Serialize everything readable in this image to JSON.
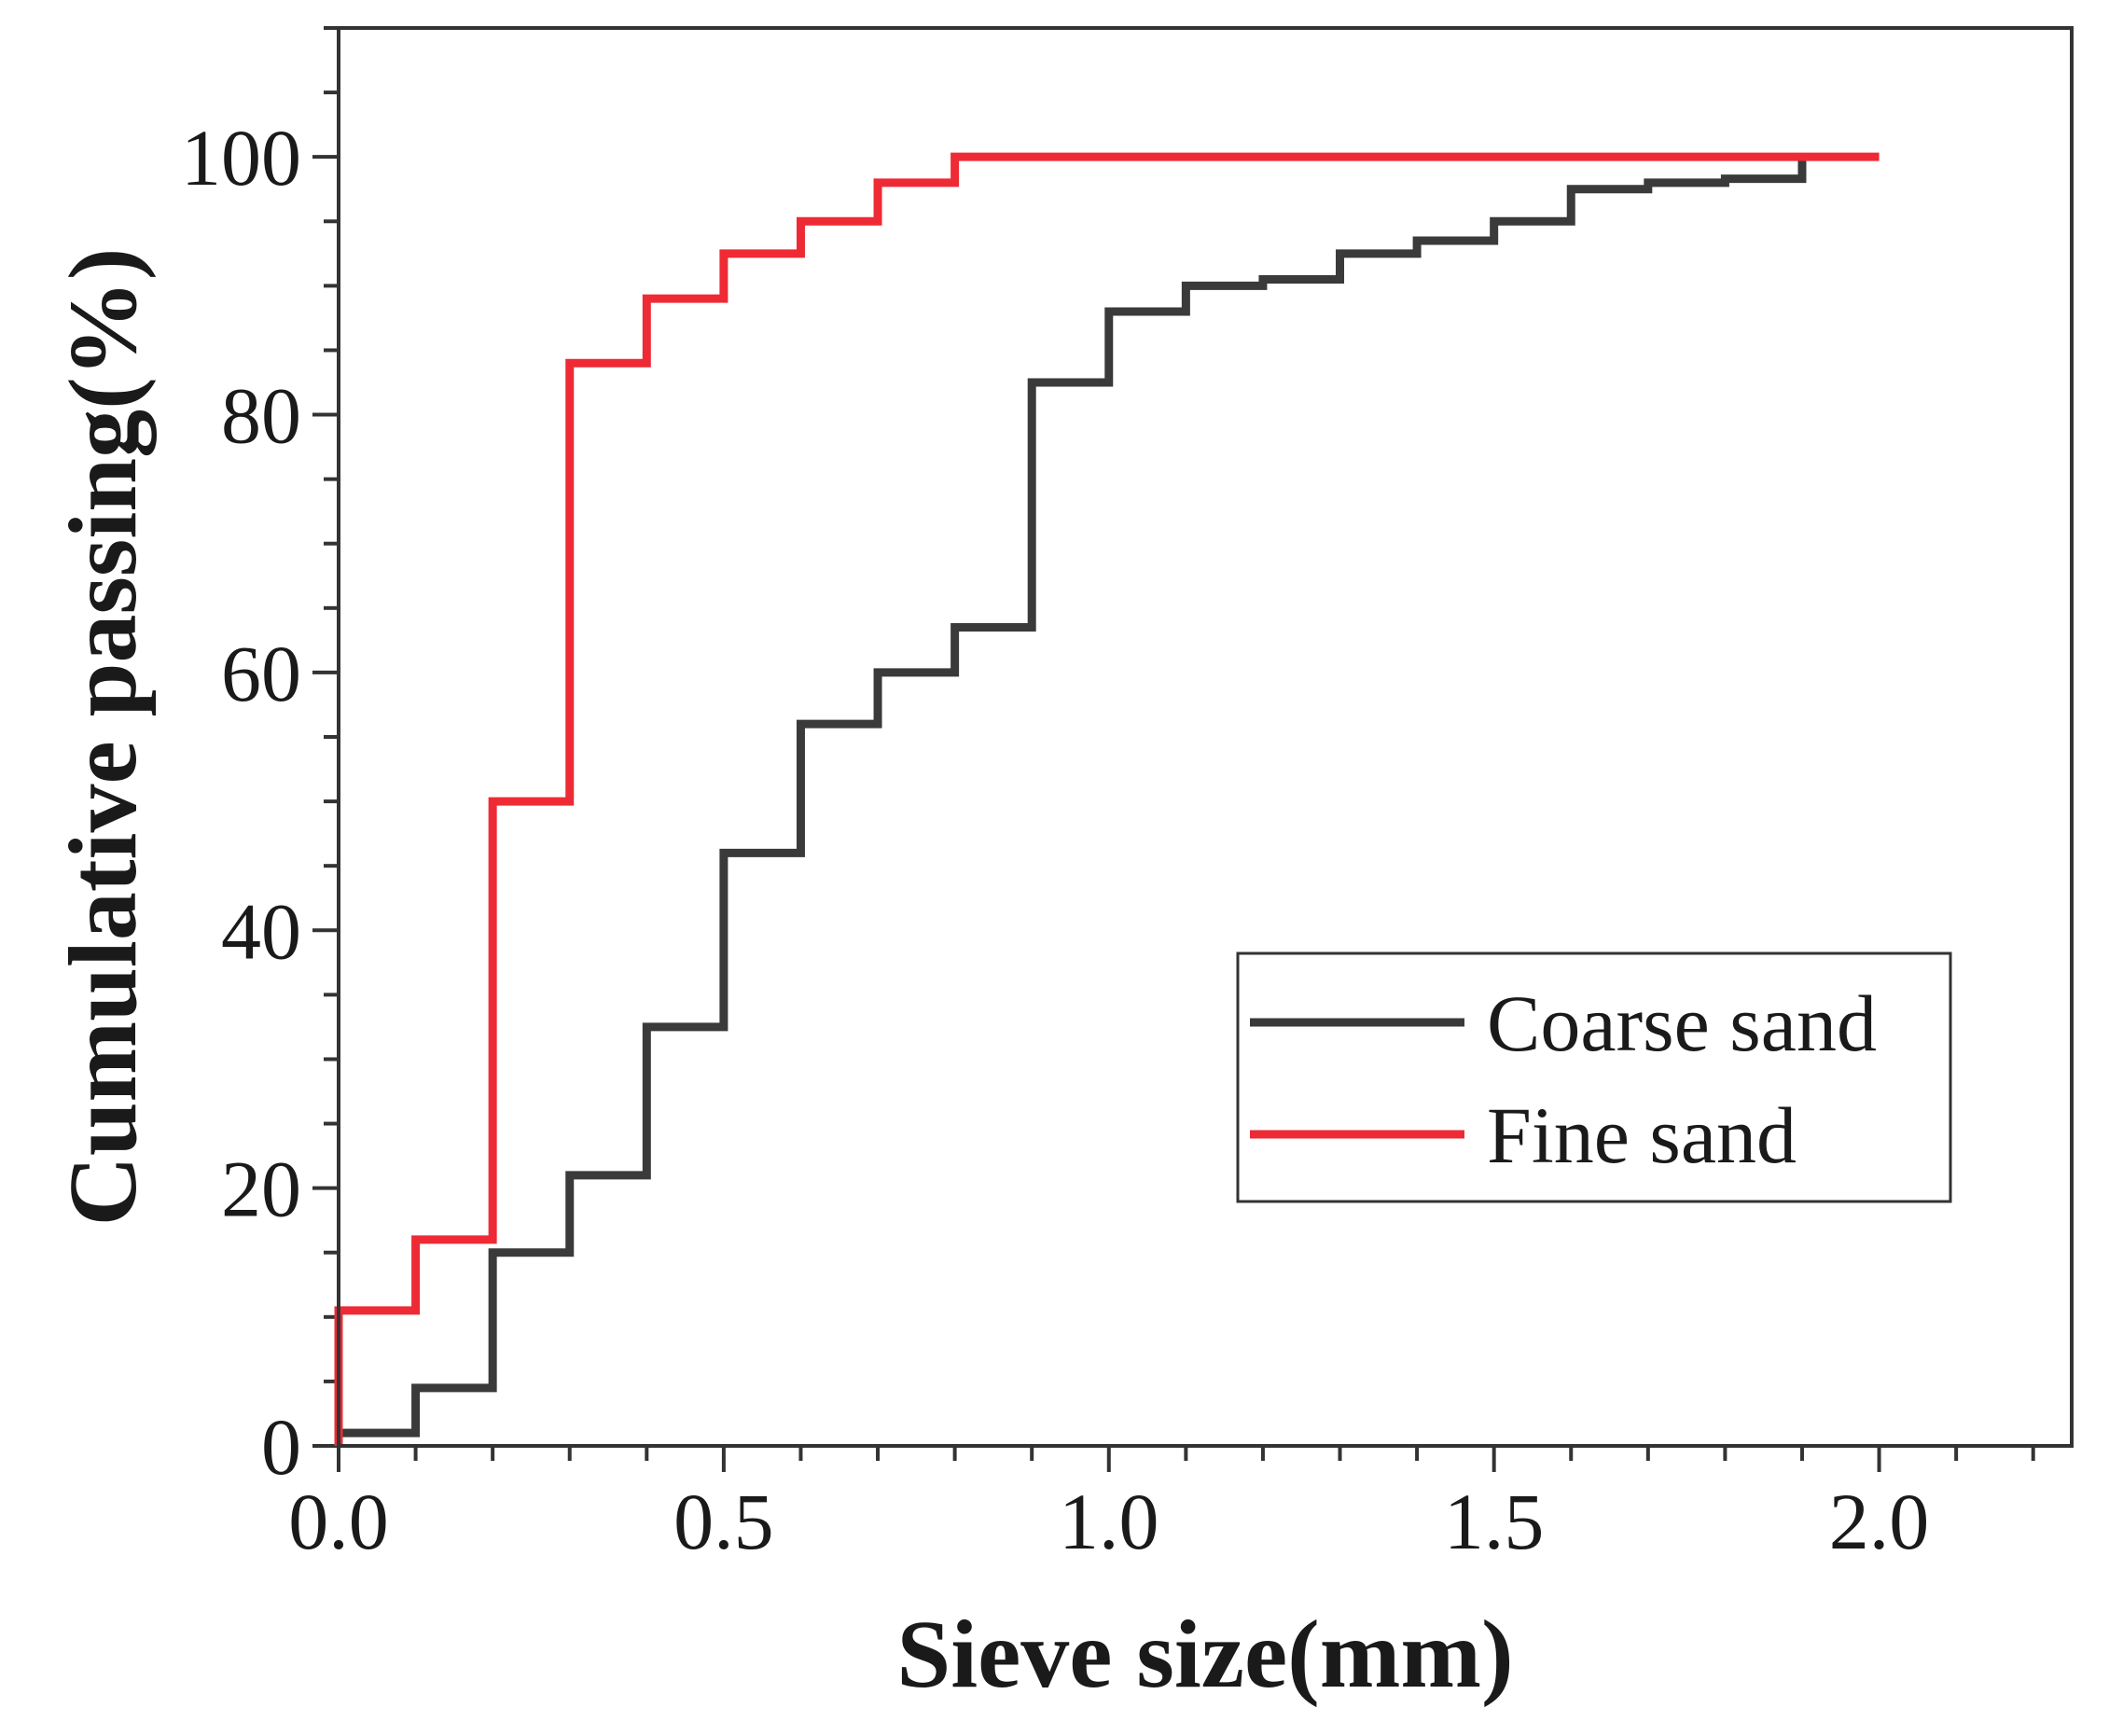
{
  "chart_data": {
    "type": "line",
    "step": true,
    "xlabel": "Sieve size(mm)",
    "ylabel": "Cumulative passing(%)",
    "xlim": [
      0,
      2.25
    ],
    "ylim": [
      0,
      110
    ],
    "x_ticks": [
      0.0,
      0.5,
      1.0,
      1.5,
      2.0
    ],
    "x_tick_labels": [
      "0.0",
      "0.5",
      "1.0",
      "1.5",
      "2.0"
    ],
    "y_ticks": [
      0,
      20,
      40,
      60,
      80,
      100
    ],
    "y_tick_labels": [
      "0",
      "20",
      "40",
      "60",
      "80",
      "100"
    ],
    "legend_position": "bottom-right",
    "series": [
      {
        "name": "Coarse sand",
        "color": "#3a3a3a",
        "x": [
          0.0,
          0.1,
          0.2,
          0.3,
          0.4,
          0.5,
          0.6,
          0.7,
          0.8,
          0.9,
          1.0,
          1.1,
          1.2,
          1.3,
          1.4,
          1.5,
          1.6,
          1.7,
          1.8,
          1.9
        ],
        "values": [
          1,
          4.5,
          15,
          21,
          32.5,
          46,
          56,
          60,
          63.5,
          82.5,
          88,
          90,
          90.5,
          92.5,
          93.5,
          95,
          97.5,
          98,
          98.3,
          100
        ]
      },
      {
        "name": "Fine sand",
        "color": "#ee2a35",
        "x": [
          0.0,
          0.1,
          0.2,
          0.3,
          0.4,
          0.5,
          0.6,
          0.7,
          0.8,
          0.9,
          1.0,
          1.1,
          1.2,
          1.3,
          1.4,
          1.5,
          1.6,
          1.7,
          1.8,
          1.9,
          2.0
        ],
        "values": [
          10.5,
          16,
          50,
          84,
          89,
          92.5,
          95,
          98,
          100,
          100,
          100,
          100,
          100,
          100,
          100,
          100,
          100,
          100,
          100,
          100,
          100
        ]
      }
    ]
  }
}
